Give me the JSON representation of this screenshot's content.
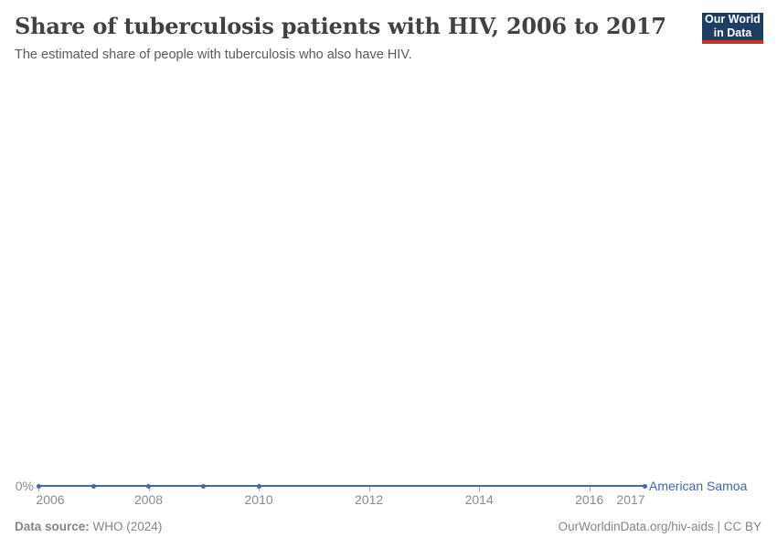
{
  "header": {
    "title": "Share of tuberculosis patients with HIV, 2006 to 2017",
    "subtitle": "The estimated share of people with tuberculosis who also have HIV.",
    "logo": {
      "line1": "Our World",
      "line2": "in Data"
    }
  },
  "chart_data": {
    "type": "line",
    "title": "Share of tuberculosis patients with HIV, 2006 to 2017",
    "series": [
      {
        "name": "American Samoa",
        "color": "#4467ab",
        "x": [
          2006,
          2007,
          2008,
          2009,
          2010,
          2017
        ],
        "values": [
          0,
          0,
          0,
          0,
          0,
          0
        ],
        "unit": "%"
      }
    ],
    "x_ticks": [
      2006,
      2008,
      2010,
      2012,
      2014,
      2016,
      2017
    ],
    "y_tick_label": "0%",
    "xlabel": "",
    "ylabel": "",
    "xlim": [
      2006,
      2017
    ],
    "ylim": [
      0,
      0
    ],
    "grid": false,
    "legend_position": "end-of-line"
  },
  "footer": {
    "datasource_prefix": "Data source:",
    "datasource_value": "WHO (2024)",
    "credit": "OurWorldinData.org/hiv-aids | CC BY"
  },
  "colors": {
    "accent": "#4467ab",
    "tick_text": "#8b8b8b",
    "tick_mark": "#a8a8a8",
    "title_text": "#3e4247",
    "subtitle_text": "#5b5b5b",
    "footer_text": "#858585",
    "logo_bg": "#1d3d63",
    "logo_bar": "#c5342c"
  }
}
